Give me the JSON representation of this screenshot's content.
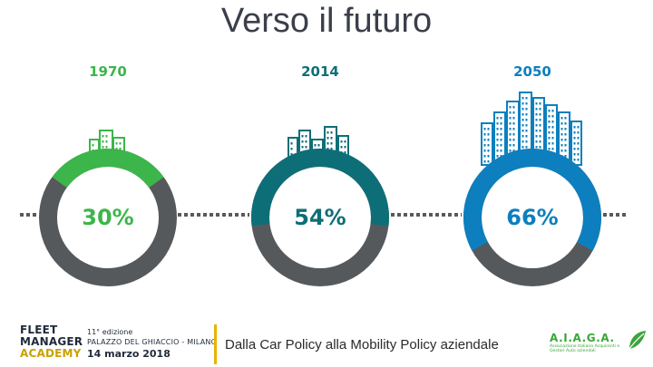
{
  "slide": {
    "title": "Verso il futuro",
    "subtitle": "Dalla Car Policy alla Mobility Policy aziendale"
  },
  "chart_data": {
    "type": "donut",
    "title": "Verso il futuro",
    "items": [
      {
        "year": "1970",
        "percent": 30,
        "label": "30%",
        "color": "#3cb54a",
        "buildings": 3
      },
      {
        "year": "2014",
        "percent": 54,
        "label": "54%",
        "color": "#0e6e78",
        "buildings": 5
      },
      {
        "year": "2050",
        "percent": 66,
        "label": "66%",
        "color": "#0d7fbe",
        "buildings": 7
      }
    ],
    "remainder_color": "#56595c"
  },
  "footer": {
    "academy_lines": [
      "FLEET",
      "MANAGER",
      "ACADEMY"
    ],
    "edition": "11° edizione",
    "venue": "PALAZZO DEL GHIACCIO - MILANO",
    "date": "14 marzo 2018",
    "association_name": "A.I.A.G.A.",
    "association_desc": "Associazione Italiana Acquirenti e Gestori Auto aziendali",
    "academy_color": "#1f2a3a",
    "academy_accent": "#c9a100"
  }
}
